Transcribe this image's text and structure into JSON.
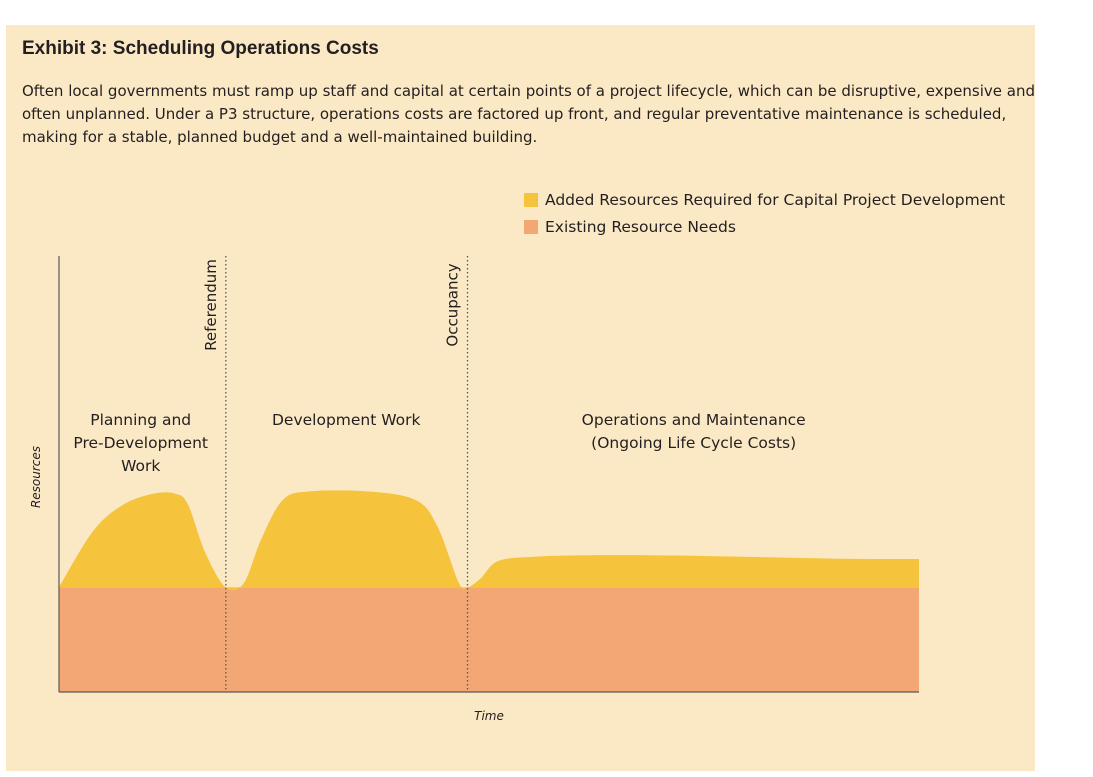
{
  "colors": {
    "panel_bg": "#fbe9c6",
    "added_resources": "#f5c43c",
    "existing_resources": "#f2a775",
    "axis": "#595959",
    "text": "#231f20"
  },
  "exhibit": {
    "title": "Exhibit 3: Scheduling Operations Costs",
    "intro_lines": [
      "Often local governments must ramp up staff and capital at certain points of a project lifecycle, which can be disruptive, expensive and",
      "often unplanned. Under a P3 structure, operations costs are factored up front, and regular preventative maintenance is scheduled,",
      "making for a stable, planned budget and a well-maintained building."
    ]
  },
  "chart_data": {
    "type": "area",
    "xlabel": "Time",
    "ylabel": "Resources",
    "xlim": [
      0,
      100
    ],
    "ylim": [
      0,
      100
    ],
    "grid": false,
    "legend_position": "top-right",
    "legend": [
      "Added Resources Required for Capital Project Development",
      "Existing Resource Needs"
    ],
    "series": [
      {
        "name": "Existing Resource Needs",
        "color": "#f2a775",
        "x": [
          0,
          100
        ],
        "y": [
          24,
          24
        ]
      },
      {
        "name": "Added Resources Required for Capital Project Development",
        "color": "#f5c43c",
        "x": [
          0,
          4,
          7.5,
          11,
          13.5,
          15,
          17,
          19.4,
          21.5,
          23.5,
          26,
          29,
          36,
          41.5,
          44,
          46.5,
          47.5,
          49,
          51,
          55,
          63,
          75,
          90,
          100
        ],
        "y": [
          24,
          37,
          43,
          45.5,
          45.5,
          43,
          32,
          24,
          25,
          35,
          44,
          46,
          46,
          44,
          38,
          25,
          24,
          26,
          30,
          31,
          31.4,
          31.2,
          30.6,
          30.5
        ]
      }
    ],
    "milestones": [
      {
        "label": "Referendum",
        "x": 19.4
      },
      {
        "label": "Occupancy",
        "x": 47.5
      }
    ],
    "phases": [
      {
        "lines": [
          "Planning and",
          "Pre-Development",
          "Work"
        ],
        "x_center": 9.5
      },
      {
        "lines": [
          "Development Work"
        ],
        "x_center": 33.4
      },
      {
        "lines": [
          "Operations and Maintenance",
          "(Ongoing Life Cycle Costs)"
        ],
        "x_center": 73.8
      }
    ]
  }
}
